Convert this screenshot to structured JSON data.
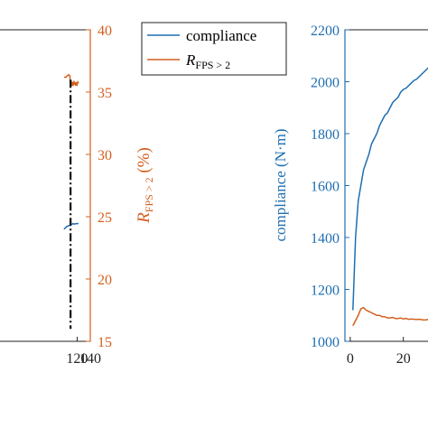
{
  "colors": {
    "compliance": "#1f6eb0",
    "rfps": "#d35f1f",
    "axis": "#222222",
    "vline": "#111111"
  },
  "legend": {
    "compliance_label": "compliance",
    "rfps_label_main": "R",
    "rfps_label_sub": "FPS > 2"
  },
  "chart_data": [
    {
      "type": "line",
      "panel": "left",
      "title": "",
      "xlabel": "",
      "x_ticks": [
        120,
        140
      ],
      "xlim": [
        0,
        140
      ],
      "y_right_label_main": "R",
      "y_right_label_sub": "FPS > 2",
      "y_right_label_unit": " (%)",
      "y_right_ticks": [
        15,
        20,
        25,
        30,
        35,
        40
      ],
      "y_right_lim": [
        15,
        40
      ],
      "series": [
        {
          "name": "compliance",
          "axis": "right",
          "x": [
            100,
            104,
            108,
            110,
            112,
            114,
            116,
            118,
            120,
            122
          ],
          "y": [
            24.0,
            24.2,
            24.3,
            24.35,
            24.4,
            24.45,
            24.4,
            24.45,
            24.45,
            24.45
          ]
        },
        {
          "name": "R_FPS>2",
          "axis": "right",
          "x": [
            100,
            103,
            105,
            107,
            109,
            110,
            111,
            112,
            113,
            114,
            115,
            116,
            117,
            118,
            119,
            120,
            121,
            122
          ],
          "y": [
            36.2,
            36.2,
            36.3,
            36.4,
            36.3,
            35.4,
            35.9,
            35.5,
            35.8,
            35.5,
            35.9,
            35.6,
            35.8,
            35.5,
            35.7,
            35.6,
            35.8,
            35.7
          ]
        }
      ],
      "vertical_line_x": 110,
      "vertical_line_y_range": [
        16,
        36
      ]
    },
    {
      "type": "line",
      "panel": "right",
      "title": "",
      "xlabel": "",
      "ylabel": "compliance (N·m)",
      "x_ticks": [
        0,
        20
      ],
      "xlim": [
        -2,
        32
      ],
      "y_ticks": [
        1000,
        1200,
        1400,
        1600,
        1800,
        2000,
        2200
      ],
      "ylim": [
        1000,
        2200
      ],
      "series": [
        {
          "name": "compliance",
          "x": [
            1,
            2,
            3,
            4,
            5,
            6,
            7,
            8,
            9,
            10,
            11,
            12,
            13,
            14,
            15,
            16,
            17,
            18,
            19,
            20,
            21,
            22,
            23,
            24,
            25,
            26,
            27,
            28,
            29,
            30,
            31
          ],
          "y": [
            1120,
            1400,
            1540,
            1600,
            1660,
            1690,
            1720,
            1760,
            1780,
            1800,
            1830,
            1850,
            1870,
            1880,
            1900,
            1920,
            1930,
            1940,
            1960,
            1970,
            1975,
            1985,
            1995,
            2005,
            2010,
            2020,
            2030,
            2040,
            2050,
            2060,
            2070
          ]
        },
        {
          "name": "R_FPS>2",
          "x": [
            1,
            2,
            3,
            4,
            5,
            6,
            7,
            8,
            9,
            10,
            11,
            12,
            13,
            14,
            15,
            16,
            17,
            18,
            19,
            20,
            21,
            22,
            23,
            24,
            25,
            26,
            27,
            28,
            29,
            30,
            31
          ],
          "y": [
            1060,
            1080,
            1100,
            1125,
            1130,
            1120,
            1115,
            1110,
            1105,
            1100,
            1100,
            1095,
            1095,
            1090,
            1090,
            1092,
            1088,
            1088,
            1090,
            1086,
            1088,
            1085,
            1086,
            1085,
            1084,
            1085,
            1083,
            1082,
            1084,
            1082,
            1080
          ]
        }
      ]
    }
  ]
}
